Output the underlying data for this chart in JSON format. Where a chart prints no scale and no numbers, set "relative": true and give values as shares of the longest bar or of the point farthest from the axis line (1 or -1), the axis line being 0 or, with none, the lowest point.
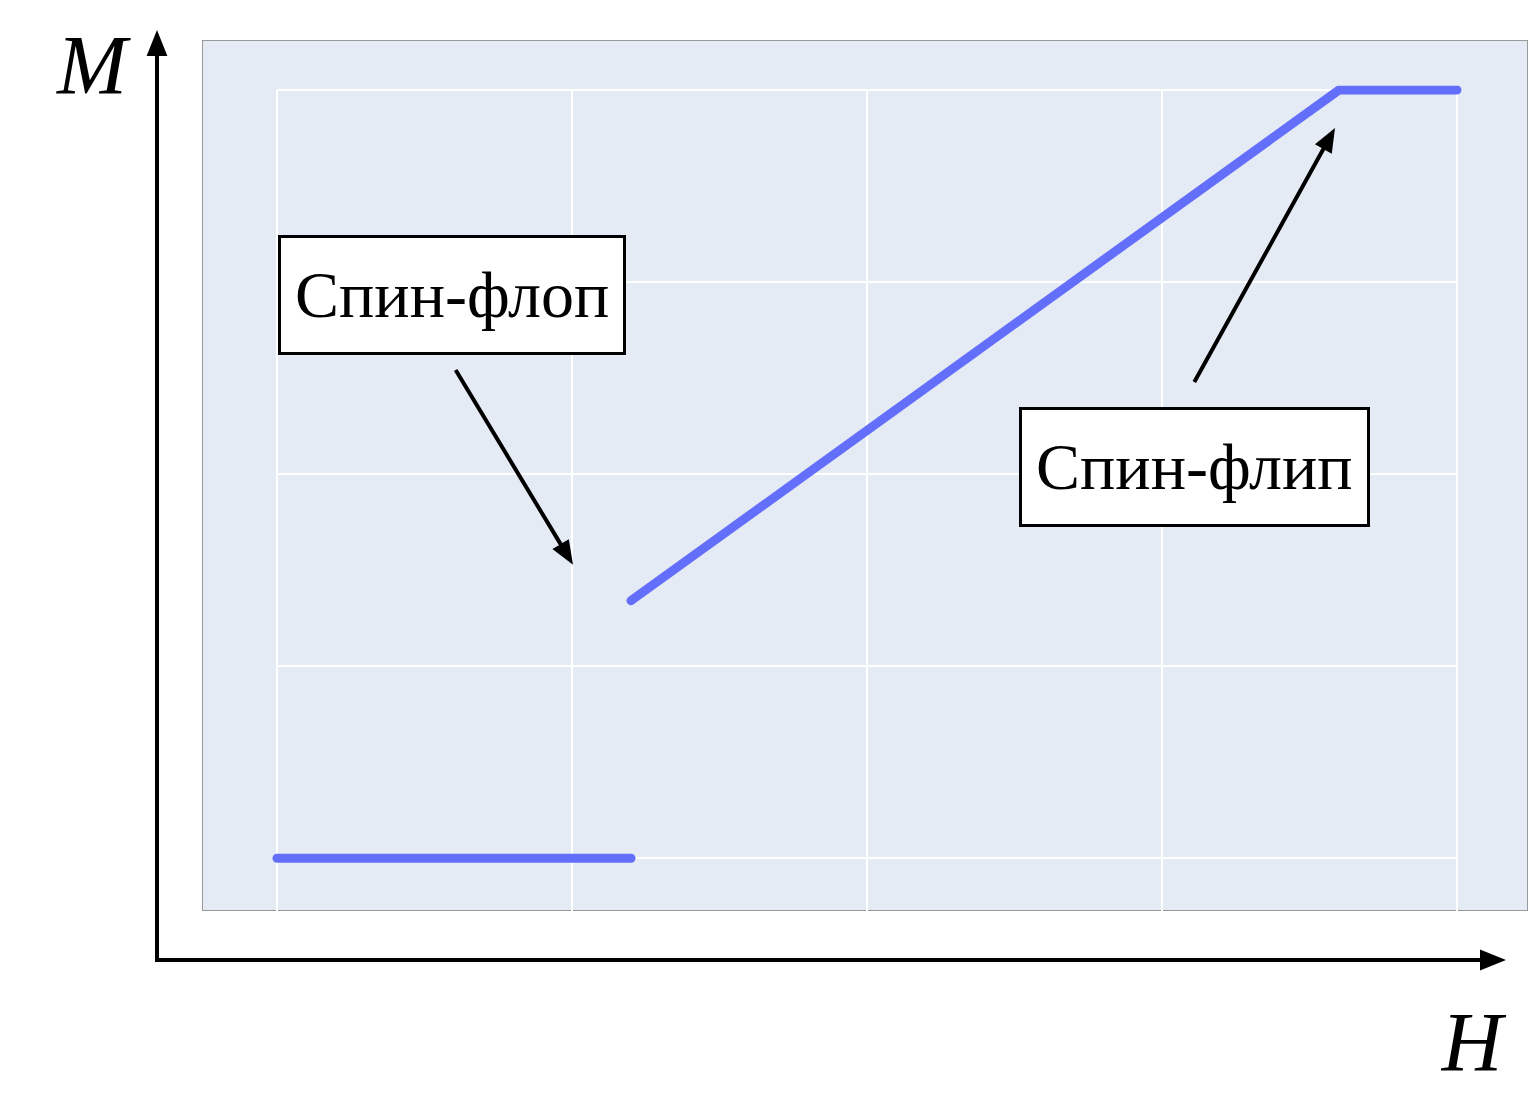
{
  "chart_data": {
    "type": "line",
    "relative": true,
    "xlabel": "H",
    "ylabel": "M",
    "categories": [
      null,
      null,
      null,
      null,
      null,
      null,
      null,
      null,
      null,
      null,
      null,
      null,
      null,
      null,
      null,
      null,
      null,
      null,
      null,
      null,
      null
    ],
    "series": [
      {
        "color": "#636efa",
        "values": [
          0.117,
          null,
          null,
          null,
          null,
          null,
          0.117,
          null,
          null,
          null,
          null,
          null,
          null,
          null,
          null,
          null,
          null,
          null,
          null,
          null,
          null
        ]
      },
      {
        "color": "#636efa",
        "values": [
          null,
          null,
          null,
          null,
          null,
          null,
          0.413,
          null,
          null,
          null,
          null,
          null,
          null,
          null,
          null,
          null,
          null,
          null,
          1,
          null,
          1
        ]
      }
    ],
    "annotations": [
      "Спин-флоп",
      "Спин-флип"
    ],
    "grid": true,
    "line_style": "solid"
  }
}
